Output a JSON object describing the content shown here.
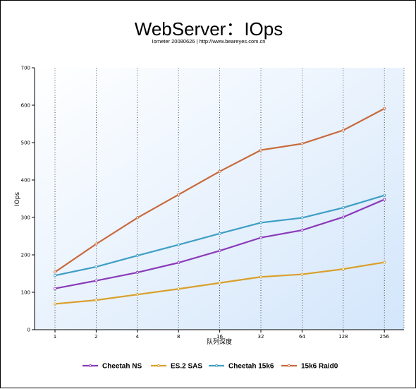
{
  "chart_data": {
    "type": "line",
    "title": "WebServer：IOps",
    "subtitle": "Iometer 20080626 | http://www.beareyes.com.cn",
    "xlabel": "队列深度",
    "ylabel": "IOps",
    "categories": [
      "1",
      "2",
      "4",
      "8",
      "16",
      "32",
      "64",
      "128",
      "256"
    ],
    "ylim": [
      0,
      700
    ],
    "yticks": [
      "0",
      "100",
      "200",
      "300",
      "400",
      "500",
      "600",
      "700"
    ],
    "grid": "vertical dotted",
    "legend_position": "bottom",
    "series": [
      {
        "name": "Cheetah NS",
        "color": "#8a3ab9",
        "values": [
          110,
          131,
          153,
          179,
          211,
          246,
          266,
          301,
          348
        ]
      },
      {
        "name": "ES.2 SAS",
        "color": "#d9a02a",
        "values": [
          69,
          79,
          94,
          109,
          125,
          141,
          148,
          162,
          180
        ]
      },
      {
        "name": "Cheetah 15k6",
        "color": "#3e9ec4",
        "values": [
          145,
          168,
          198,
          227,
          257,
          286,
          299,
          326,
          359
        ]
      },
      {
        "name": "15k6 Raid0",
        "color": "#c8693c",
        "values": [
          154,
          229,
          299,
          361,
          423,
          480,
          497,
          533,
          591
        ]
      }
    ]
  }
}
